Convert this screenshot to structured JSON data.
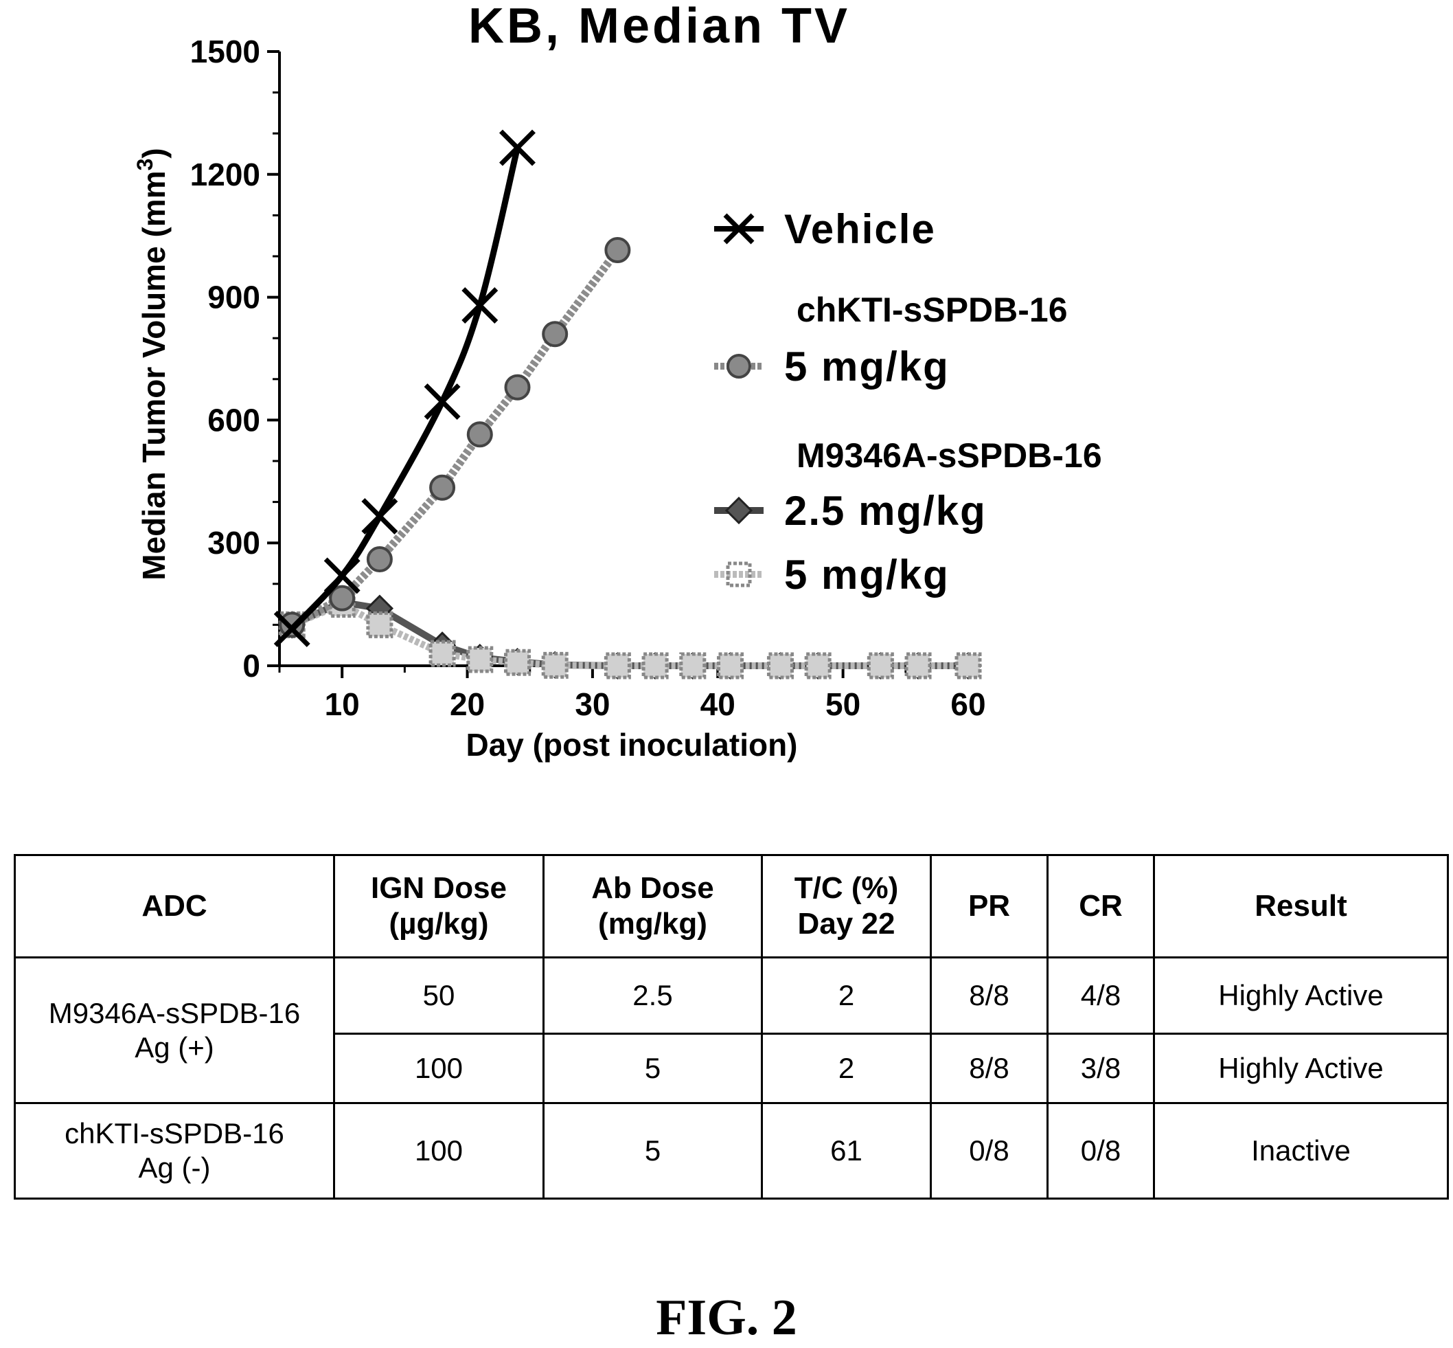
{
  "chart_data": {
    "type": "line",
    "title": "KB, Median  TV",
    "xlabel": "Day (post inoculation)",
    "ylabel": "Median Tumor Volume (mm",
    "ylabel_superscript": "3",
    "ylabel_close": ")",
    "xlim": [
      5,
      60
    ],
    "ylim": [
      0,
      1500
    ],
    "xticks": [
      10,
      20,
      30,
      40,
      50,
      60
    ],
    "yticks": [
      0,
      300,
      600,
      900,
      1200,
      1500
    ],
    "grid": false,
    "legend_position": "right",
    "series": [
      {
        "name": "Vehicle",
        "marker": "x",
        "x": [
          6,
          10,
          13,
          18,
          21,
          24
        ],
        "y": [
          90,
          220,
          365,
          645,
          880,
          1265
        ]
      },
      {
        "name": "chKTI-sSPDB-16 5 mg/kg",
        "marker": "circle",
        "x": [
          6,
          10,
          13,
          18,
          21,
          24,
          27,
          32
        ],
        "y": [
          100,
          165,
          260,
          435,
          565,
          680,
          810,
          1015
        ]
      },
      {
        "name": "M9346A-sSPDB-16 2.5 mg/kg",
        "marker": "diamond",
        "x": [
          6,
          10,
          13,
          18,
          21,
          24,
          27,
          32,
          35,
          38,
          41,
          45,
          48,
          53,
          56,
          60
        ],
        "y": [
          100,
          155,
          140,
          50,
          20,
          10,
          2,
          0,
          0,
          0,
          0,
          0,
          0,
          0,
          0,
          0
        ]
      },
      {
        "name": "M9346A-sSPDB-16 5 mg/kg",
        "marker": "square",
        "x": [
          6,
          10,
          13,
          18,
          21,
          24,
          27,
          32,
          35,
          38,
          41,
          45,
          48,
          53,
          56,
          60
        ],
        "y": [
          100,
          150,
          100,
          30,
          15,
          8,
          1,
          0,
          0,
          0,
          0,
          0,
          0,
          0,
          0,
          0
        ]
      }
    ],
    "legend": {
      "vehicle": "Vehicle",
      "group1_head": "chKTI-sSPDB-16",
      "group1_dose": "5 mg/kg",
      "group2_head": "M9346A-sSPDB-16",
      "group2_dose_a": "2.5 mg/kg",
      "group2_dose_b": "5 mg/kg"
    }
  },
  "table": {
    "headers": {
      "adc": "ADC",
      "ign_dose_1": "IGN Dose",
      "ign_dose_2": "(µg/kg)",
      "ab_dose_1": "Ab Dose",
      "ab_dose_2": "(mg/kg)",
      "tc_1": "T/C (%)",
      "tc_2": "Day 22",
      "pr": "PR",
      "cr": "CR",
      "result": "Result"
    },
    "groups": [
      {
        "adc_line1": "M9346A-sSPDB-16",
        "adc_line2": "Ag (+)",
        "rows": [
          {
            "ign": "50",
            "ab": "2.5",
            "tc": "2",
            "pr": "8/8",
            "cr": "4/8",
            "result": "Highly Active"
          },
          {
            "ign": "100",
            "ab": "5",
            "tc": "2",
            "pr": "8/8",
            "cr": "3/8",
            "result": "Highly Active"
          }
        ]
      },
      {
        "adc_line1": "chKTI-sSPDB-16",
        "adc_line2": "Ag (-)",
        "rows": [
          {
            "ign": "100",
            "ab": "5",
            "tc": "61",
            "pr": "0/8",
            "cr": "0/8",
            "result": "Inactive"
          }
        ]
      }
    ]
  },
  "caption": "FIG. 2"
}
